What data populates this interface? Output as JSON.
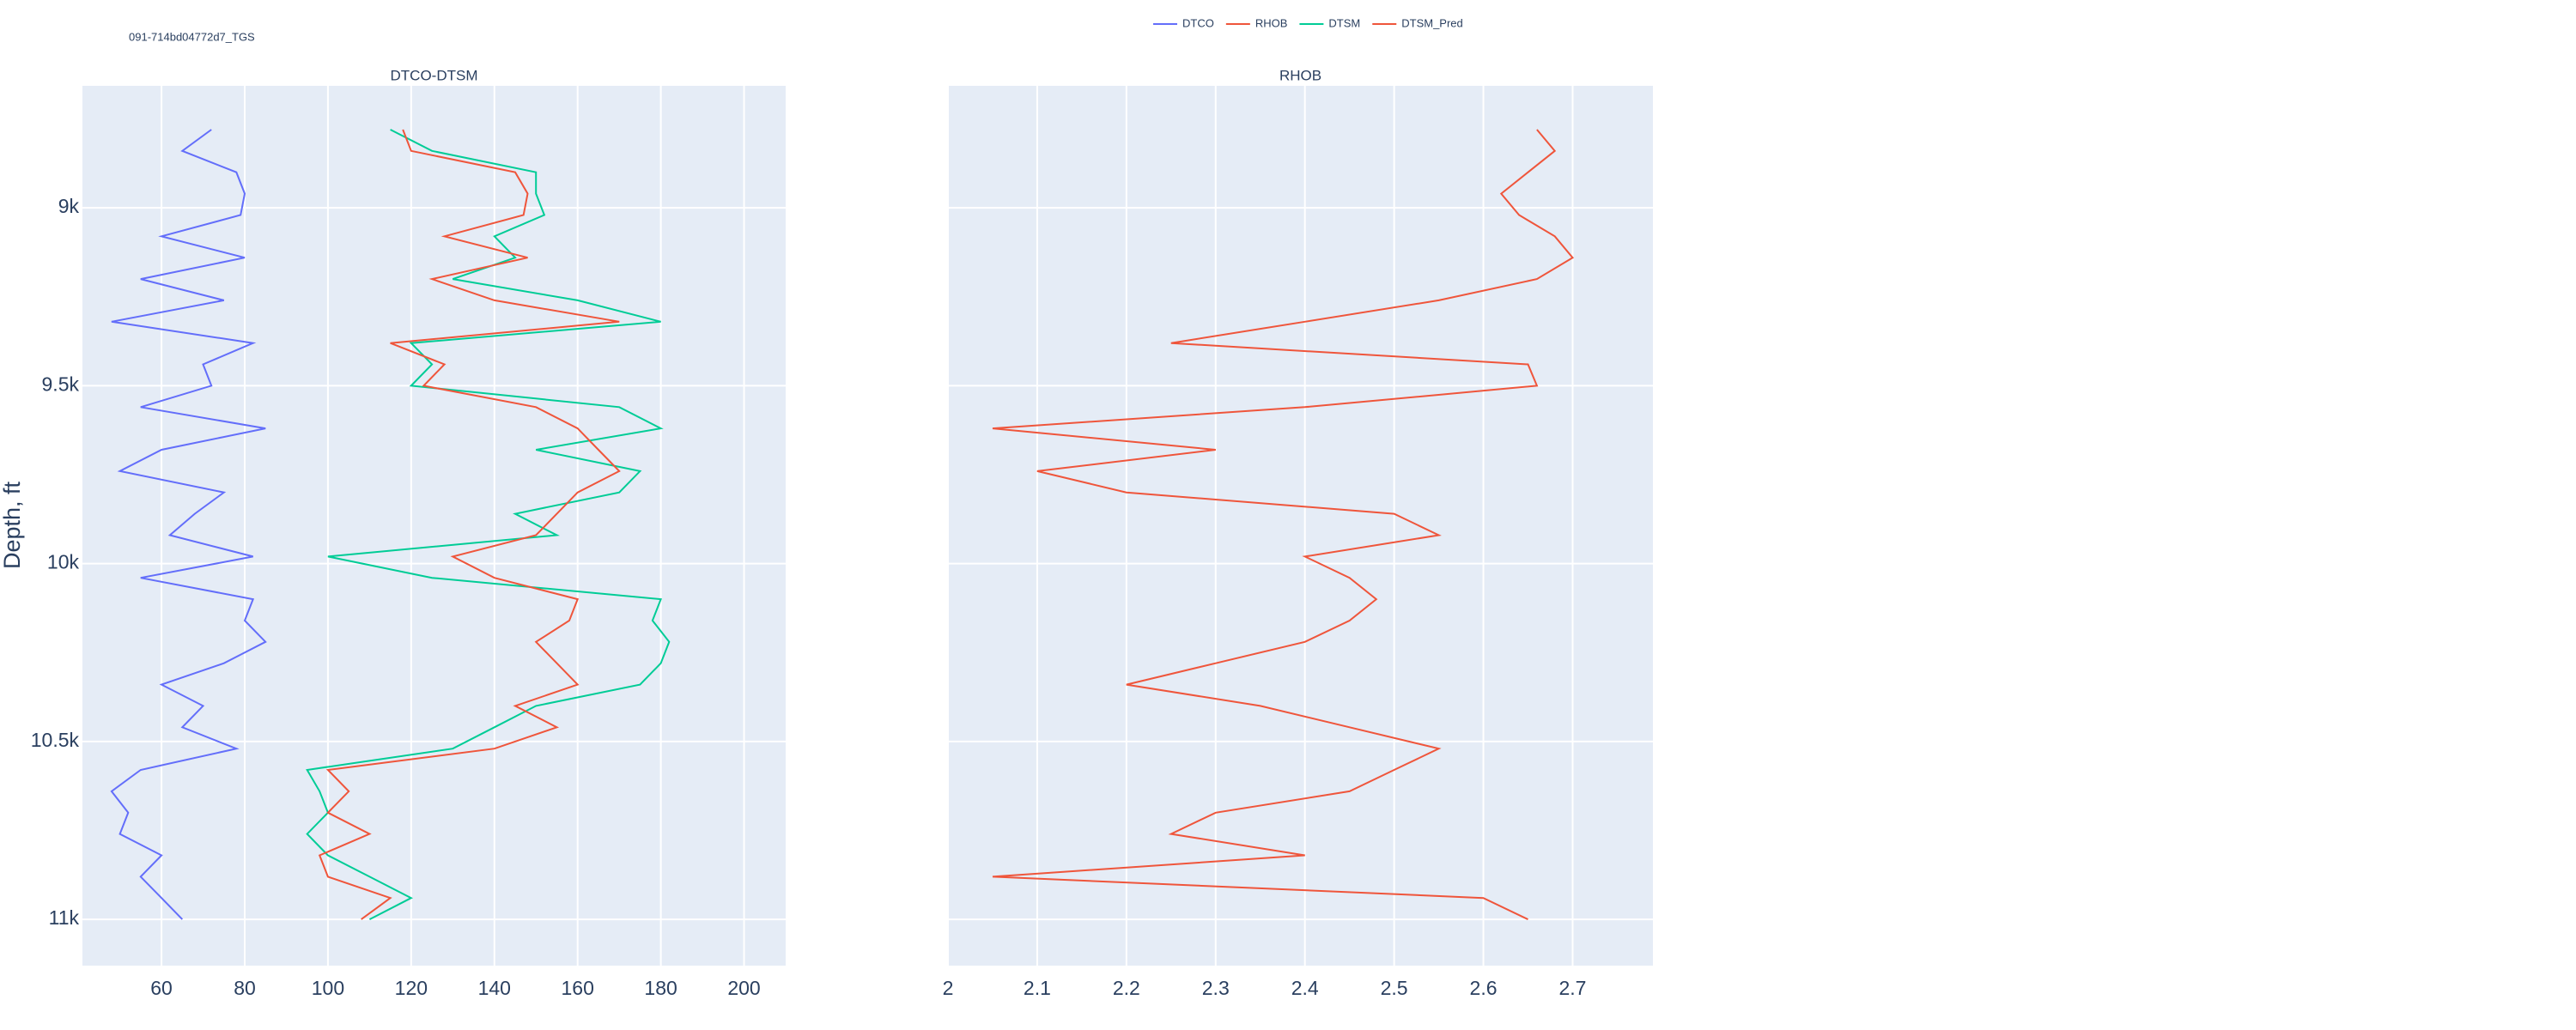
{
  "chart_data": {
    "type": "line",
    "title": "091-714bd04772d7_TGS",
    "ylabel": "Depth, ft",
    "y_reversed": true,
    "ylim": [
      8657,
      11130
    ],
    "yticks": [
      {
        "value": 9000,
        "label": "9k"
      },
      {
        "value": 9500,
        "label": "9.5k"
      },
      {
        "value": 10000,
        "label": "10k"
      },
      {
        "value": 10500,
        "label": "10.5k"
      },
      {
        "value": 11000,
        "label": "11k"
      }
    ],
    "grid": true,
    "legend": "top",
    "depth": [
      8780,
      8840,
      8900,
      8960,
      9020,
      9080,
      9140,
      9200,
      9260,
      9320,
      9380,
      9440,
      9500,
      9560,
      9620,
      9680,
      9740,
      9800,
      9860,
      9920,
      9980,
      10040,
      10100,
      10160,
      10220,
      10280,
      10340,
      10400,
      10460,
      10520,
      10580,
      10640,
      10700,
      10760,
      10820,
      10880,
      10940,
      11000
    ],
    "subplots": [
      {
        "title": "DTCO-DTSM",
        "xlim": [
          41,
          210
        ],
        "xticks": [
          60,
          80,
          100,
          120,
          140,
          160,
          180,
          200
        ]
      },
      {
        "title": "RHOB",
        "xlim": [
          2,
          2.79
        ],
        "xticks": [
          2,
          2.1,
          2.2,
          2.3,
          2.4,
          2.5,
          2.6,
          2.7
        ]
      }
    ],
    "series": [
      {
        "name": "DTCO",
        "color": "#636efa",
        "subplot": 0,
        "values": [
          72,
          65,
          78,
          80,
          79,
          60,
          80,
          55,
          75,
          48,
          82,
          70,
          72,
          55,
          85,
          60,
          50,
          75,
          68,
          62,
          82,
          55,
          82,
          80,
          85,
          75,
          60,
          70,
          65,
          78,
          55,
          48,
          52,
          50,
          60,
          55,
          60,
          65
        ]
      },
      {
        "name": "RHOB",
        "color": "#ef553b",
        "subplot": 1,
        "values": [
          2.66,
          2.68,
          2.65,
          2.62,
          2.64,
          2.68,
          2.7,
          2.66,
          2.55,
          2.4,
          2.25,
          2.65,
          2.66,
          2.4,
          2.05,
          2.3,
          2.1,
          2.2,
          2.5,
          2.55,
          2.4,
          2.45,
          2.48,
          2.45,
          2.4,
          2.3,
          2.2,
          2.35,
          2.45,
          2.55,
          2.5,
          2.45,
          2.3,
          2.25,
          2.4,
          2.05,
          2.6,
          2.65
        ]
      },
      {
        "name": "DTSM",
        "color": "#00cc96",
        "subplot": 0,
        "values": [
          115,
          125,
          150,
          150,
          152,
          140,
          145,
          130,
          160,
          180,
          120,
          125,
          120,
          170,
          180,
          150,
          175,
          170,
          145,
          155,
          100,
          125,
          180,
          178,
          182,
          180,
          175,
          150,
          140,
          130,
          95,
          98,
          100,
          95,
          100,
          110,
          120,
          110
        ]
      },
      {
        "name": "DTSM_Pred",
        "color": "#ef553b",
        "subplot": 0,
        "values": [
          118,
          120,
          145,
          148,
          147,
          128,
          148,
          125,
          140,
          170,
          115,
          128,
          123,
          150,
          160,
          165,
          170,
          160,
          155,
          150,
          130,
          140,
          160,
          158,
          150,
          155,
          160,
          145,
          155,
          140,
          100,
          105,
          100,
          110,
          98,
          100,
          115,
          108
        ]
      }
    ]
  }
}
